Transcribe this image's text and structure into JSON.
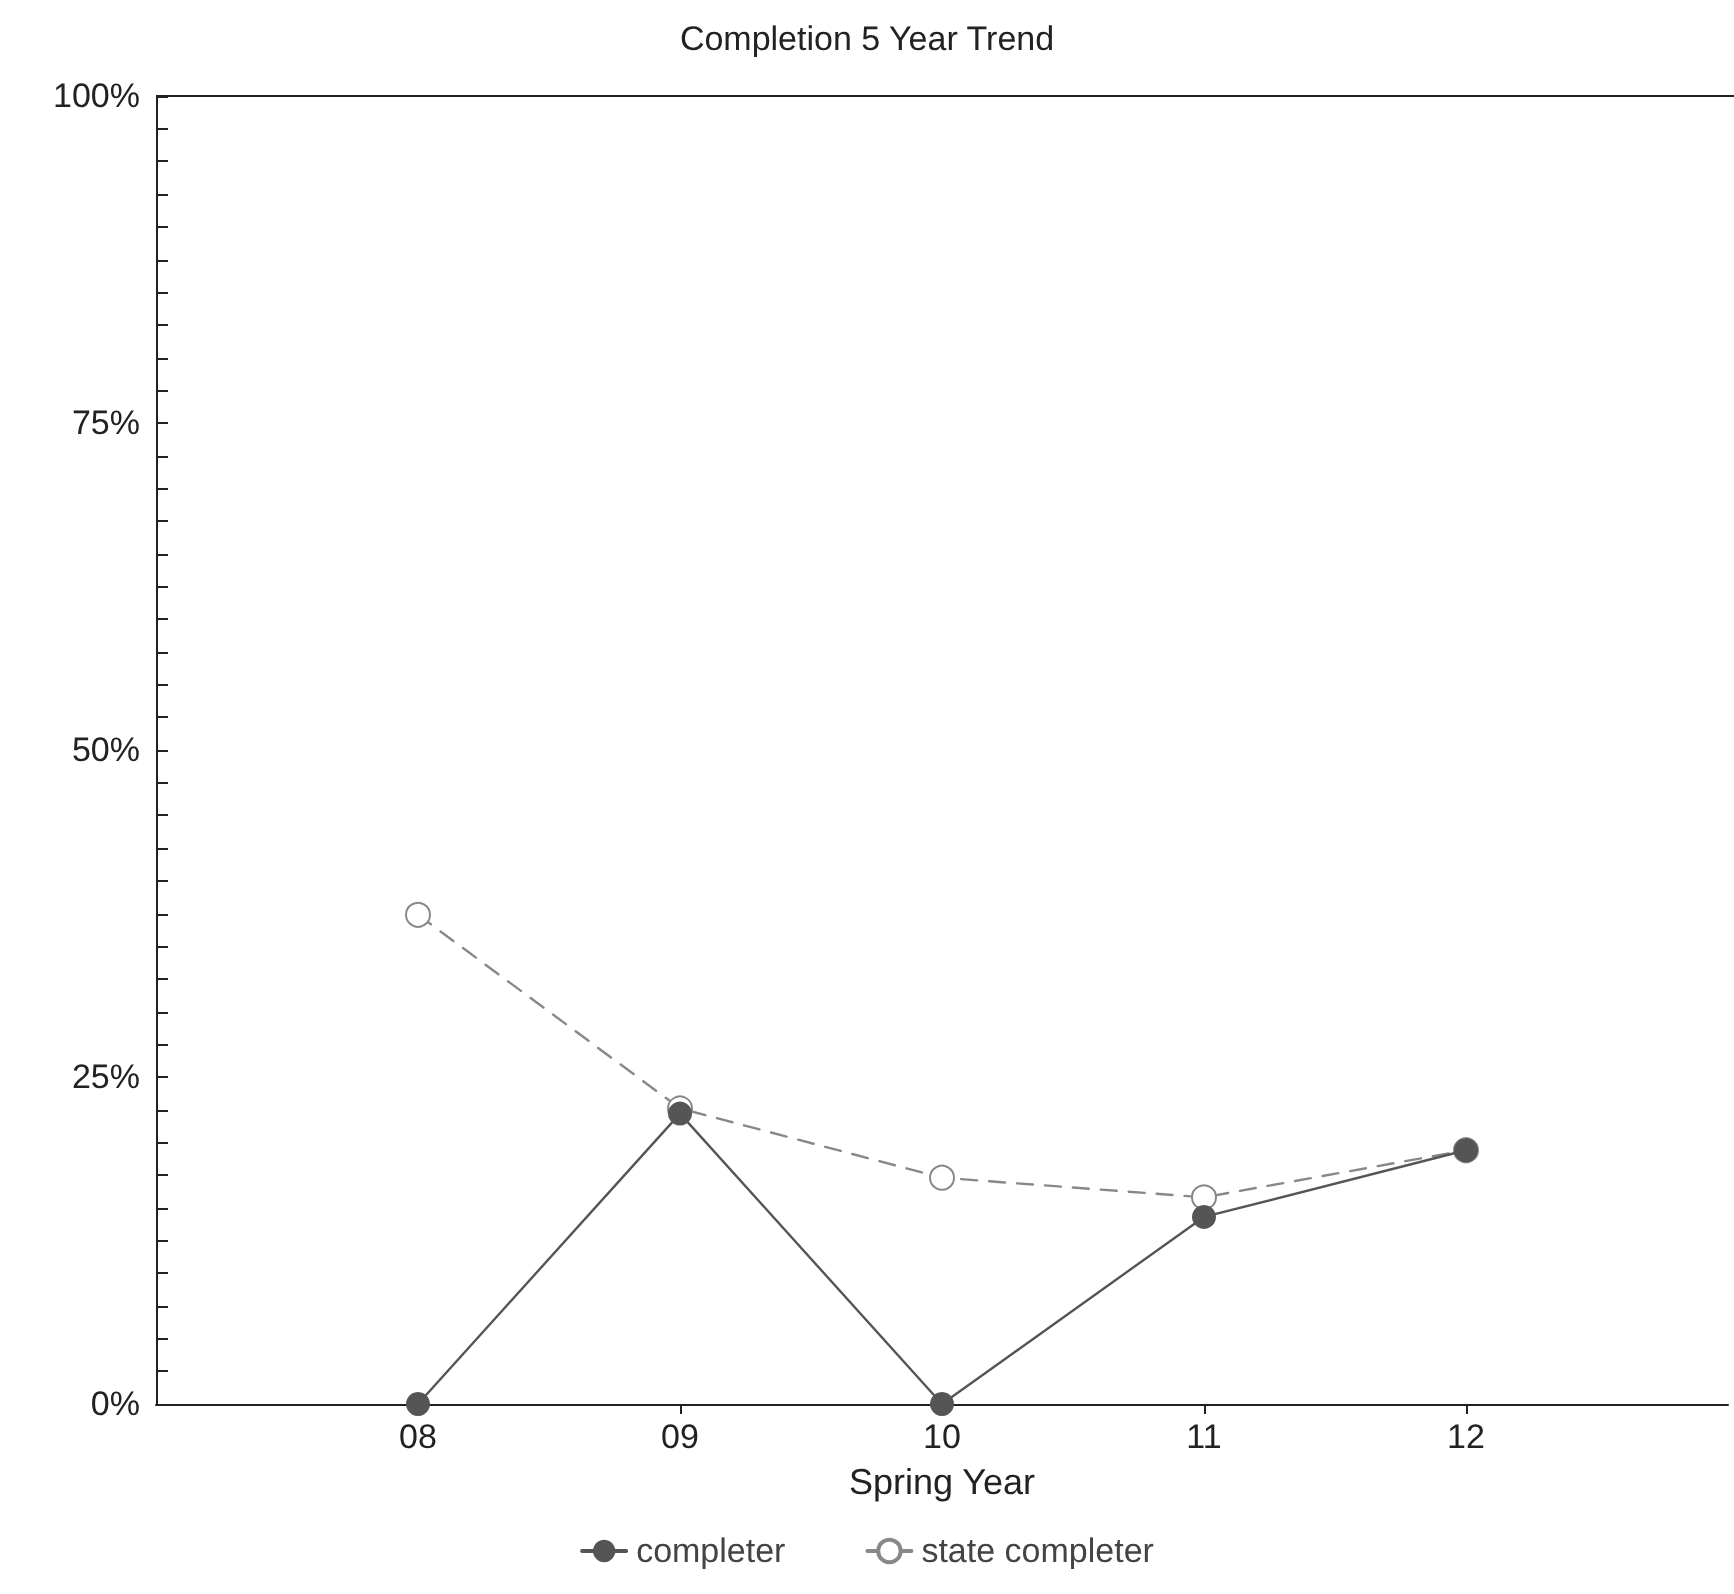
{
  "chart_data": {
    "type": "line",
    "title": "Completion 5 Year Trend",
    "xlabel": "Spring Year",
    "categories": [
      "08",
      "09",
      "10",
      "11",
      "12"
    ],
    "series": [
      {
        "name": "completer",
        "color": "#555555",
        "values": [
          0,
          22.2,
          0,
          14.3,
          19.4
        ],
        "marker": "circle",
        "line_style": "solid"
      },
      {
        "name": "state completer",
        "color": "#888888",
        "values": [
          37.4,
          22.6,
          17.3,
          15.8,
          19.4
        ],
        "marker": "circle",
        "line_style": "dashed"
      }
    ],
    "ylim": [
      0,
      100
    ],
    "yticks": [
      {
        "value": 0,
        "label": "0%"
      },
      {
        "value": 2.5,
        "label": null
      },
      {
        "value": 5,
        "label": null
      },
      {
        "value": 7.5,
        "label": null
      },
      {
        "value": 10,
        "label": null
      },
      {
        "value": 12.5,
        "label": null
      },
      {
        "value": 15,
        "label": null
      },
      {
        "value": 17.5,
        "label": null
      },
      {
        "value": 20,
        "label": null
      },
      {
        "value": 22.5,
        "label": null
      },
      {
        "value": 25,
        "label": "25%"
      },
      {
        "value": 27.5,
        "label": null
      },
      {
        "value": 30,
        "label": null
      },
      {
        "value": 32.5,
        "label": null
      },
      {
        "value": 35,
        "label": null
      },
      {
        "value": 37.5,
        "label": null
      },
      {
        "value": 40,
        "label": null
      },
      {
        "value": 42.5,
        "label": null
      },
      {
        "value": 45,
        "label": null
      },
      {
        "value": 47.5,
        "label": null
      },
      {
        "value": 50,
        "label": "50%"
      },
      {
        "value": 52.5,
        "label": null
      },
      {
        "value": 55,
        "label": null
      },
      {
        "value": 57.5,
        "label": null
      },
      {
        "value": 60,
        "label": null
      },
      {
        "value": 62.5,
        "label": null
      },
      {
        "value": 65,
        "label": null
      },
      {
        "value": 67.5,
        "label": null
      },
      {
        "value": 70,
        "label": null
      },
      {
        "value": 72.5,
        "label": null
      },
      {
        "value": 75,
        "label": "75%"
      },
      {
        "value": 77.5,
        "label": null
      },
      {
        "value": 80,
        "label": null
      },
      {
        "value": 82.5,
        "label": null
      },
      {
        "value": 85,
        "label": null
      },
      {
        "value": 87.5,
        "label": null
      },
      {
        "value": 90,
        "label": null
      },
      {
        "value": 92.5,
        "label": null
      },
      {
        "value": 95,
        "label": null
      },
      {
        "value": 97.5,
        "label": null
      },
      {
        "value": 100,
        "label": "100%"
      }
    ],
    "grid": false,
    "legend": "bottom"
  }
}
